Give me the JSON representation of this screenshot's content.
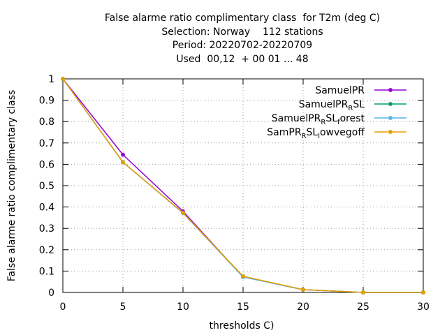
{
  "title_lines": [
    "False alarme ratio complimentary class  for T2m (deg C)",
    "Selection: Norway    112 stations",
    "Period: 20220702-20220709",
    "Used  00,12  + 00 01 ... 48"
  ],
  "chart_data": {
    "type": "line",
    "title": "False alarme ratio complimentary class  for T2m (deg C)",
    "xlabel": "thresholds C)",
    "ylabel": "False alarme ratio complimentary class",
    "x": [
      0,
      5,
      10,
      15,
      20,
      25,
      30
    ],
    "xlim": [
      0,
      30
    ],
    "ylim": [
      0,
      1
    ],
    "xticks": [
      "0",
      "5",
      "10",
      "15",
      "20",
      "25",
      "30"
    ],
    "yticks": [
      "0",
      "0.1",
      "0.2",
      "0.3",
      "0.4",
      "0.5",
      "0.6",
      "0.7",
      "0.8",
      "0.9",
      "1"
    ],
    "grid": true,
    "legend_position": "top-right",
    "series": [
      {
        "name": "SamuelPR",
        "legend_parts": [
          [
            "SamuelPR",
            ""
          ]
        ],
        "color": "#9400d3",
        "values": [
          1.0,
          0.645,
          0.38,
          0.073,
          0.013,
          0.0,
          0.0
        ]
      },
      {
        "name": "SamuelPR_RSL",
        "legend_parts": [
          [
            "SamuelPR",
            ""
          ],
          [
            "R",
            "sub"
          ],
          [
            "SL",
            ""
          ]
        ],
        "color": "#009e73",
        "values": [
          1.0,
          0.61,
          0.372,
          0.073,
          0.013,
          0.0,
          0.0
        ]
      },
      {
        "name": "SamuelPR_RSL_forest",
        "legend_parts": [
          [
            "SamuelPR",
            ""
          ],
          [
            "R",
            "sub"
          ],
          [
            "SL",
            ""
          ],
          [
            "f",
            "sub"
          ],
          [
            "orest",
            ""
          ]
        ],
        "color": "#56b4e9",
        "values": [
          1.0,
          0.61,
          0.372,
          0.073,
          0.013,
          0.0,
          0.0
        ]
      },
      {
        "name": "SamPR_RSL_lowvegoff",
        "legend_parts": [
          [
            "SamPR",
            ""
          ],
          [
            "R",
            "sub"
          ],
          [
            "SL",
            ""
          ],
          [
            "l",
            "sub"
          ],
          [
            "owvegoff",
            ""
          ]
        ],
        "color": "#e69f00",
        "values": [
          1.0,
          0.61,
          0.373,
          0.076,
          0.013,
          0.0,
          0.0
        ]
      }
    ]
  }
}
